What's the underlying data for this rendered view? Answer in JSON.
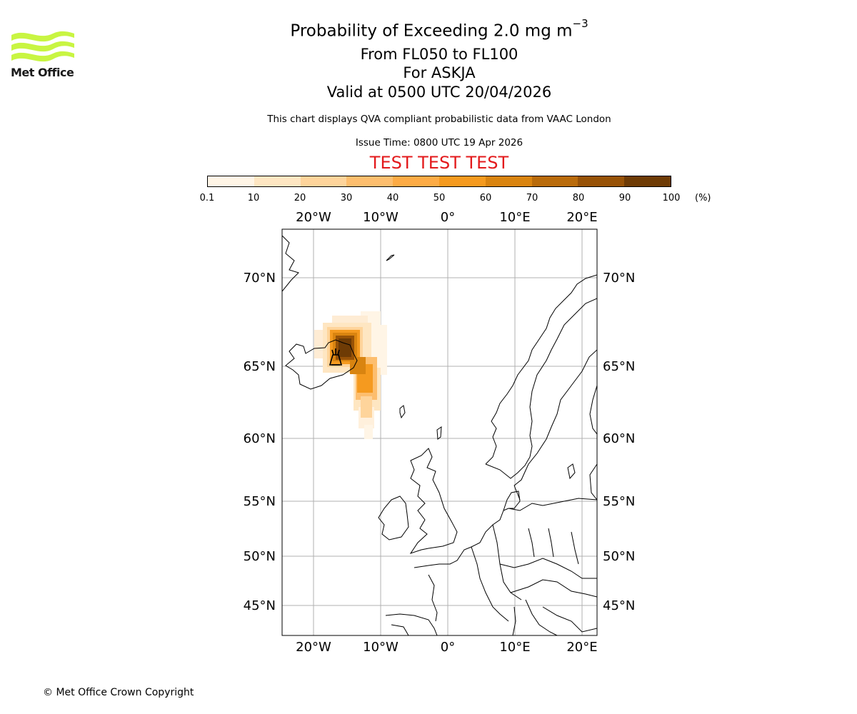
{
  "header": {
    "logo_text": "Met Office",
    "title_main": "Probability of Exceeding 2.0 mg m",
    "title_exp": "−3",
    "levels": "From FL050 to FL100",
    "volcano": "For ASKJA",
    "valid": "Valid at 0500 UTC 20/04/2026",
    "note": "This chart displays QVA compliant probabilistic data from VAAC London",
    "issue": "Issue Time: 0800 UTC 19 Apr 2026",
    "test": "TEST TEST TEST"
  },
  "colorbar": {
    "ticks": [
      "0.1",
      "10",
      "20",
      "30",
      "40",
      "50",
      "60",
      "70",
      "80",
      "90",
      "100"
    ],
    "unit": "(%)",
    "colors": [
      "#fff5e6",
      "#fee6c2",
      "#fed49b",
      "#fdbe6e",
      "#fdab45",
      "#f59a1f",
      "#d98410",
      "#b96b0b",
      "#975207",
      "#6e3b05"
    ]
  },
  "map": {
    "lon_labels": [
      "20°W",
      "10°W",
      "0°",
      "10°E",
      "20°E"
    ],
    "lat_labels": [
      "70°N",
      "65°N",
      "60°N",
      "55°N",
      "50°N",
      "45°N"
    ],
    "volcano_icon": "volcano-icon",
    "plume": "ash-probability-plume"
  },
  "footer": {
    "copyright": "© Met Office Crown Copyright"
  }
}
